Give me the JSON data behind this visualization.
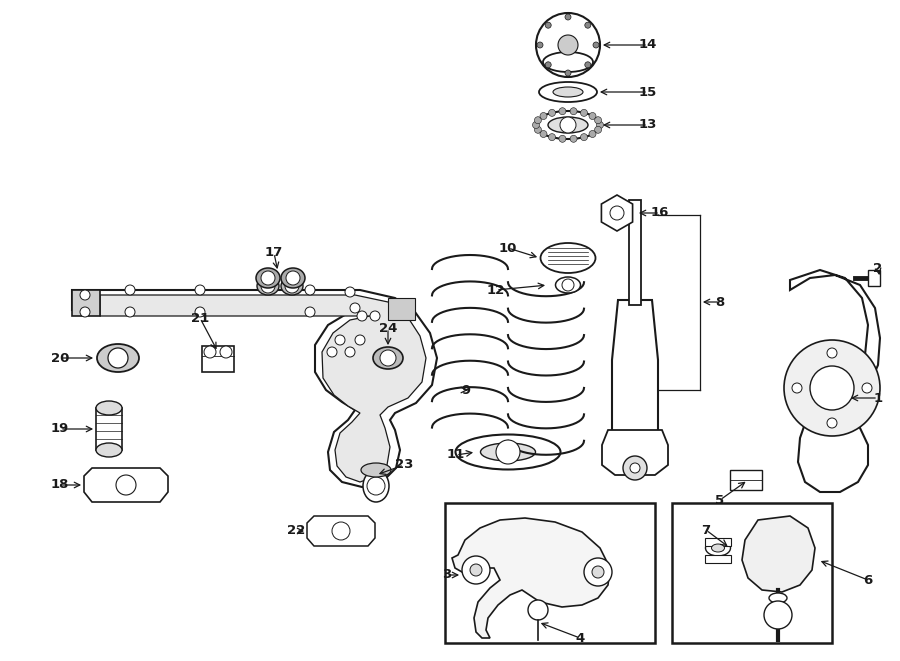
{
  "bg_color": "#ffffff",
  "line_color": "#1a1a1a",
  "label_fontsize": 9.5
}
